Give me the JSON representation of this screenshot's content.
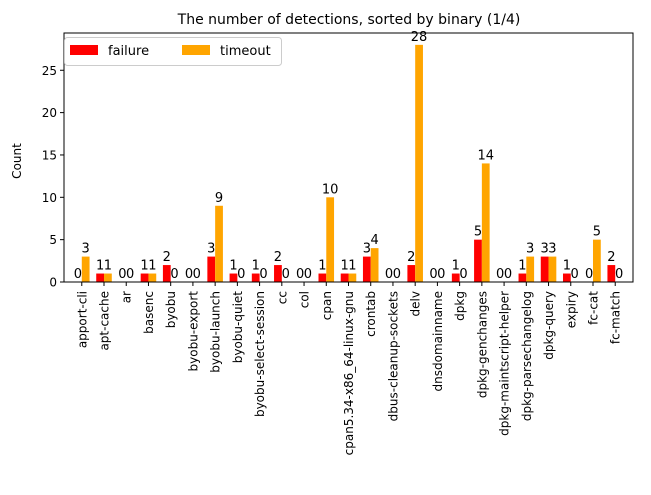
{
  "chart_data": {
    "type": "bar",
    "title": "The number of detections, sorted by binary (1/4)",
    "xlabel": "",
    "ylabel": "Count",
    "ylim": [
      0,
      29.4
    ],
    "yticks": [
      0,
      5,
      10,
      15,
      20,
      25
    ],
    "grid": false,
    "legend_position": "top-left",
    "categories": [
      "apport-cli",
      "apt-cache",
      "ar",
      "basenc",
      "byobu",
      "byobu-export",
      "byobu-launch",
      "byobu-quiet",
      "byobu-select-session",
      "cc",
      "col",
      "cpan",
      "cpan5.34-x86_64-linux-gnu",
      "crontab",
      "dbus-cleanup-sockets",
      "delv",
      "dnsdomainname",
      "dpkg",
      "dpkg-genchanges",
      "dpkg-maintscript-helper",
      "dpkg-parsechangelog",
      "dpkg-query",
      "expiry",
      "fc-cat",
      "fc-match"
    ],
    "series": [
      {
        "name": "failure",
        "color": "#ff0000",
        "values": [
          0,
          1,
          0,
          1,
          2,
          0,
          3,
          1,
          1,
          2,
          0,
          1,
          1,
          3,
          0,
          2,
          0,
          1,
          5,
          0,
          1,
          3,
          1,
          0,
          2
        ]
      },
      {
        "name": "timeout",
        "color": "#ffa500",
        "values": [
          3,
          1,
          0,
          1,
          0,
          0,
          9,
          0,
          0,
          0,
          0,
          10,
          1,
          4,
          0,
          28,
          0,
          0,
          14,
          0,
          3,
          3,
          0,
          5,
          0
        ]
      }
    ]
  }
}
